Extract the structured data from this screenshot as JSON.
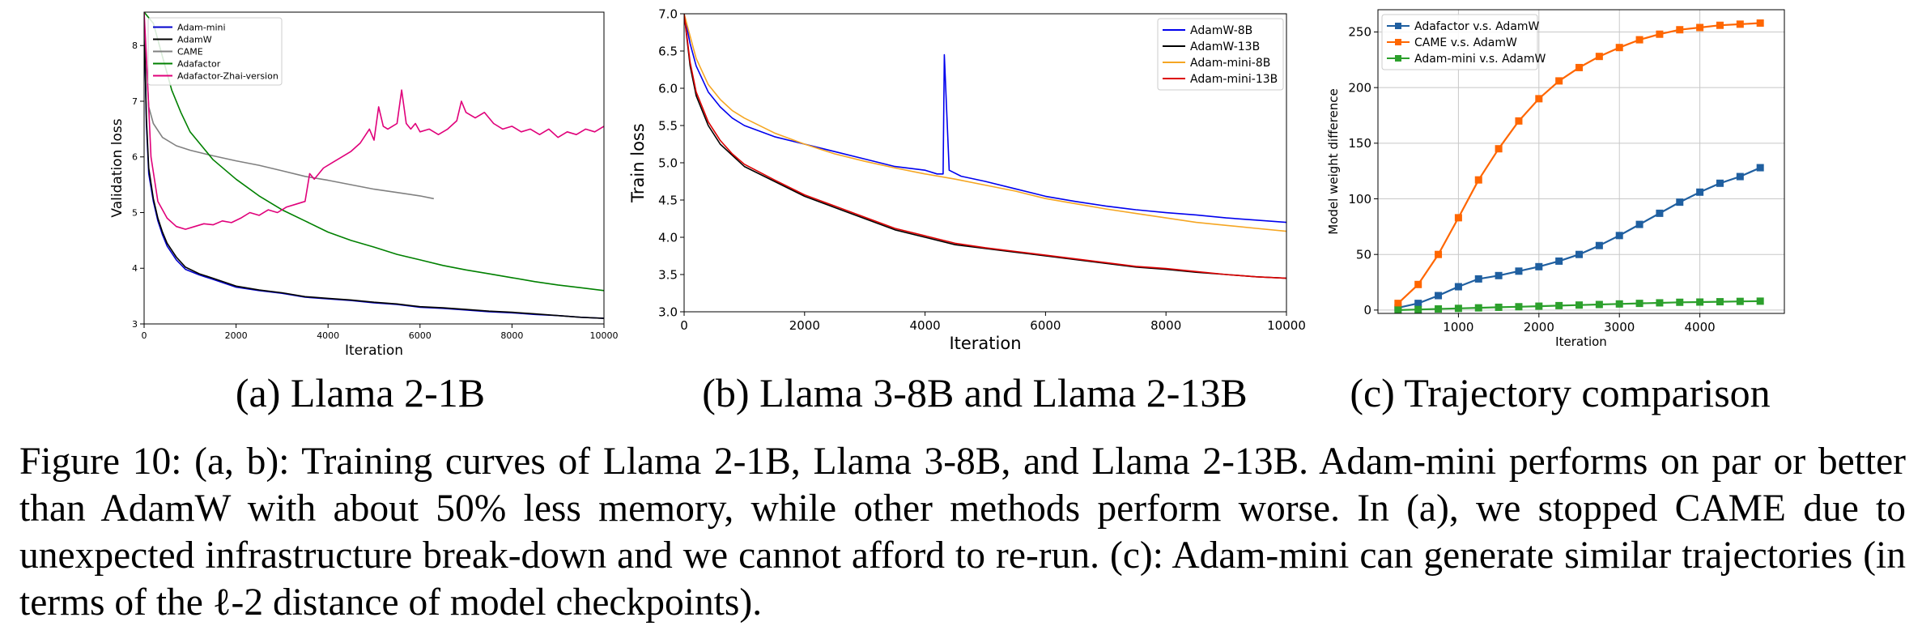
{
  "panels": [
    {
      "caption": "(a) Llama 2-1B",
      "chart_data": {
        "type": "line",
        "xlabel": "Iteration",
        "ylabel": "Validation loss",
        "xlim": [
          0,
          10000
        ],
        "ylim": [
          3,
          8.6
        ],
        "xticks": [
          0,
          2000,
          4000,
          6000,
          8000,
          10000
        ],
        "yticks": [
          3,
          4,
          5,
          6,
          7,
          8
        ],
        "grid": false,
        "legend_position": "top-left",
        "series": [
          {
            "name": "Adam-mini",
            "color": "#0000cc",
            "x": [
              0,
              50,
              100,
              200,
              300,
              400,
              500,
              700,
              900,
              1200,
              1500,
              2000,
              2500,
              3000,
              3500,
              4000,
              4500,
              5000,
              5500,
              6000,
              6500,
              7000,
              7500,
              8000,
              8500,
              9000,
              9500,
              10000
            ],
            "y": [
              8.5,
              6.6,
              5.7,
              5.2,
              4.85,
              4.6,
              4.4,
              4.15,
              3.98,
              3.88,
              3.8,
              3.66,
              3.6,
              3.55,
              3.48,
              3.45,
              3.42,
              3.38,
              3.35,
              3.3,
              3.28,
              3.25,
              3.22,
              3.2,
              3.17,
              3.15,
              3.12,
              3.1
            ]
          },
          {
            "name": "AdamW",
            "color": "#000000",
            "x": [
              0,
              50,
              100,
              200,
              300,
              400,
              500,
              700,
              900,
              1200,
              1500,
              2000,
              2500,
              3000,
              3500,
              4000,
              4500,
              5000,
              5500,
              6000,
              6500,
              7000,
              7500,
              8000,
              8500,
              9000,
              9500,
              10000
            ],
            "y": [
              8.5,
              6.7,
              5.8,
              5.25,
              4.9,
              4.65,
              4.45,
              4.2,
              4.02,
              3.9,
              3.82,
              3.68,
              3.61,
              3.56,
              3.49,
              3.46,
              3.43,
              3.39,
              3.36,
              3.31,
              3.29,
              3.26,
              3.23,
              3.21,
              3.18,
              3.15,
              3.12,
              3.1
            ]
          },
          {
            "name": "CAME",
            "color": "#808080",
            "x": [
              0,
              100,
              200,
              400,
              700,
              1000,
              1500,
              2000,
              2500,
              3000,
              3500,
              4000,
              4500,
              5000,
              5500,
              6000,
              6300
            ],
            "y": [
              8.5,
              6.9,
              6.6,
              6.35,
              6.2,
              6.12,
              6.02,
              5.93,
              5.85,
              5.75,
              5.65,
              5.58,
              5.5,
              5.42,
              5.36,
              5.3,
              5.25
            ]
          },
          {
            "name": "Adafactor",
            "color": "#008000",
            "x": [
              0,
              200,
              400,
              600,
              800,
              1000,
              1500,
              2000,
              2500,
              3000,
              3500,
              4000,
              4500,
              5000,
              5500,
              6000,
              6500,
              7000,
              7500,
              8000,
              8500,
              9000,
              9500,
              10000
            ],
            "y": [
              8.6,
              8.4,
              7.8,
              7.2,
              6.8,
              6.45,
              5.95,
              5.6,
              5.3,
              5.05,
              4.85,
              4.65,
              4.5,
              4.38,
              4.25,
              4.15,
              4.05,
              3.97,
              3.9,
              3.83,
              3.76,
              3.7,
              3.65,
              3.6
            ]
          },
          {
            "name": "Adafactor-Zhai-version",
            "color": "#e0007a",
            "x": [
              0,
              50,
              150,
              300,
              500,
              700,
              900,
              1100,
              1300,
              1500,
              1700,
              1900,
              2100,
              2300,
              2500,
              2700,
              2900,
              3100,
              3300,
              3500,
              3600,
              3700,
              3900,
              4100,
              4300,
              4500,
              4700,
              4900,
              5000,
              5100,
              5200,
              5300,
              5400,
              5500,
              5600,
              5700,
              5800,
              5900,
              6000,
              6200,
              6400,
              6600,
              6800,
              6900,
              7000,
              7200,
              7400,
              7600,
              7800,
              8000,
              8200,
              8400,
              8600,
              8800,
              9000,
              9200,
              9400,
              9600,
              9800,
              10000
            ],
            "y": [
              8.6,
              7.8,
              6.0,
              5.2,
              4.9,
              4.75,
              4.7,
              4.75,
              4.8,
              4.78,
              4.85,
              4.82,
              4.9,
              5.0,
              4.95,
              5.05,
              5.0,
              5.1,
              5.15,
              5.2,
              5.7,
              5.6,
              5.8,
              5.9,
              6.0,
              6.1,
              6.25,
              6.5,
              6.3,
              6.9,
              6.55,
              6.5,
              6.55,
              6.6,
              7.2,
              6.6,
              6.5,
              6.6,
              6.45,
              6.5,
              6.4,
              6.5,
              6.65,
              7.0,
              6.8,
              6.7,
              6.8,
              6.6,
              6.5,
              6.55,
              6.45,
              6.5,
              6.4,
              6.5,
              6.35,
              6.45,
              6.4,
              6.5,
              6.45,
              6.55
            ]
          }
        ]
      }
    },
    {
      "caption": "(b) Llama 3-8B and Llama 2-13B",
      "chart_data": {
        "type": "line",
        "xlabel": "Iteration",
        "ylabel": "Train loss",
        "xlim": [
          0,
          10000
        ],
        "ylim": [
          3.0,
          7.0
        ],
        "xticks": [
          0,
          2000,
          4000,
          6000,
          8000,
          10000
        ],
        "yticks": [
          3.0,
          3.5,
          4.0,
          4.5,
          5.0,
          5.5,
          6.0,
          6.5,
          7.0
        ],
        "grid": false,
        "legend_position": "top-right",
        "series": [
          {
            "name": "AdamW-8B",
            "color": "#0000ee",
            "x": [
              0,
              100,
              200,
              400,
              600,
              800,
              1000,
              1500,
              2000,
              2500,
              3000,
              3500,
              4000,
              4200,
              4300,
              4320,
              4400,
              4600,
              5000,
              5500,
              6000,
              6500,
              7000,
              7500,
              8000,
              8500,
              9000,
              9500,
              10000
            ],
            "y": [
              7.0,
              6.6,
              6.3,
              5.95,
              5.75,
              5.6,
              5.5,
              5.35,
              5.25,
              5.15,
              5.05,
              4.95,
              4.9,
              4.85,
              4.85,
              6.45,
              4.9,
              4.82,
              4.75,
              4.65,
              4.55,
              4.48,
              4.42,
              4.37,
              4.33,
              4.3,
              4.26,
              4.23,
              4.2
            ]
          },
          {
            "name": "AdamW-13B",
            "color": "#000000",
            "x": [
              0,
              100,
              200,
              400,
              600,
              800,
              1000,
              1500,
              2000,
              2500,
              3000,
              3500,
              4000,
              4500,
              5000,
              5500,
              6000,
              6500,
              7000,
              7500,
              8000,
              8500,
              9000,
              9500,
              10000
            ],
            "y": [
              7.0,
              6.3,
              5.9,
              5.5,
              5.25,
              5.1,
              4.95,
              4.75,
              4.55,
              4.4,
              4.25,
              4.1,
              4.0,
              3.9,
              3.85,
              3.8,
              3.75,
              3.7,
              3.65,
              3.6,
              3.57,
              3.53,
              3.5,
              3.47,
              3.45
            ]
          },
          {
            "name": "Adam-mini-8B",
            "color": "#f5a623",
            "x": [
              0,
              100,
              200,
              400,
              600,
              800,
              1000,
              1500,
              2000,
              2500,
              3000,
              3500,
              4000,
              4500,
              5000,
              5500,
              6000,
              6500,
              7000,
              7500,
              8000,
              8500,
              9000,
              9500,
              10000
            ],
            "y": [
              7.0,
              6.7,
              6.4,
              6.05,
              5.85,
              5.7,
              5.6,
              5.4,
              5.25,
              5.12,
              5.02,
              4.93,
              4.85,
              4.78,
              4.7,
              4.62,
              4.52,
              4.45,
              4.38,
              4.32,
              4.26,
              4.2,
              4.16,
              4.12,
              4.08
            ]
          },
          {
            "name": "Adam-mini-13B",
            "color": "#dd0000",
            "x": [
              0,
              100,
              200,
              400,
              600,
              800,
              1000,
              1500,
              2000,
              2500,
              3000,
              3500,
              4000,
              4500,
              5000,
              5500,
              6000,
              6500,
              7000,
              7500,
              8000,
              8500,
              9000,
              9500,
              10000
            ],
            "y": [
              7.0,
              6.35,
              5.95,
              5.55,
              5.3,
              5.12,
              4.98,
              4.77,
              4.57,
              4.42,
              4.27,
              4.12,
              4.02,
              3.92,
              3.86,
              3.81,
              3.76,
              3.71,
              3.66,
              3.61,
              3.58,
              3.54,
              3.5,
              3.47,
              3.45
            ]
          }
        ]
      }
    },
    {
      "caption": "(c) Trajectory comparison",
      "chart_data": {
        "type": "line",
        "xlabel": "Iteration",
        "ylabel": "Model weight difference",
        "xlim": [
          0,
          5050
        ],
        "ylim": [
          -3,
          270
        ],
        "xticks": [
          1000,
          2000,
          3000,
          4000
        ],
        "yticks": [
          0,
          50,
          100,
          150,
          200,
          250
        ],
        "grid": true,
        "legend_position": "top-left",
        "series": [
          {
            "name": "Adafactor v.s. AdamW",
            "color": "#1f5fa0",
            "x": [
              250,
              500,
              750,
              1000,
              1250,
              1500,
              1750,
              2000,
              2250,
              2500,
              2750,
              3000,
              3250,
              3500,
              3750,
              4000,
              4250,
              4500,
              4750
            ],
            "y": [
              2,
              6,
              13,
              21,
              28,
              31,
              35,
              39,
              44,
              50,
              58,
              67,
              77,
              87,
              97,
              106,
              114,
              120,
              128
            ]
          },
          {
            "name": "CAME v.s. AdamW",
            "color": "#ff6600",
            "x": [
              250,
              500,
              750,
              1000,
              1250,
              1500,
              1750,
              2000,
              2250,
              2500,
              2750,
              3000,
              3250,
              3500,
              3750,
              4000,
              4250,
              4500,
              4750
            ],
            "y": [
              6,
              23,
              50,
              83,
              117,
              145,
              170,
              190,
              206,
              218,
              228,
              236,
              243,
              248,
              252,
              254,
              256,
              257,
              258
            ]
          },
          {
            "name": "Adam-mini v.s. AdamW",
            "color": "#2ca02c",
            "x": [
              250,
              500,
              750,
              1000,
              1250,
              1500,
              1750,
              2000,
              2250,
              2500,
              2750,
              3000,
              3250,
              3500,
              3750,
              4000,
              4250,
              4500,
              4750
            ],
            "y": [
              0,
              0.5,
              1,
              1.5,
              2,
              2.5,
              3,
              3.5,
              4,
              4.5,
              5,
              5.5,
              6,
              6.5,
              7,
              7.2,
              7.5,
              7.8,
              8
            ]
          }
        ]
      }
    }
  ],
  "caption": {
    "label": "Figure 10:",
    "text": "(a, b): Training curves of Llama 2-1B, Llama 3-8B, and Llama 2-13B. Adam-mini performs on par or better than AdamW with about 50% less memory, while other methods perform worse. In (a), we stopped CAME due to unexpected infrastructure break-down and we cannot afford to re-run.  (c): Adam-mini can generate similar trajectories (in terms of the ℓ-2 distance of model checkpoints)."
  }
}
